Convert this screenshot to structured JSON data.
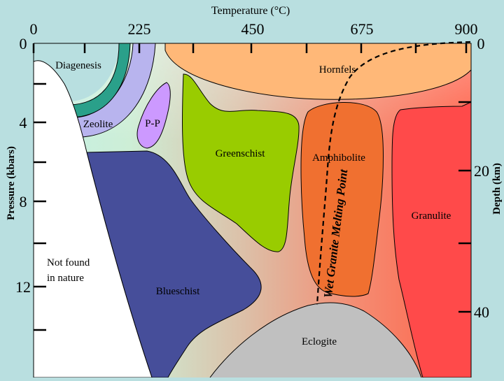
{
  "axes": {
    "top_title": "Temperature (°C)",
    "top_ticks": [
      "0",
      "225",
      "450",
      "675",
      "900"
    ],
    "left_title": "Pressure (kbars)",
    "left_ticks": [
      "0",
      "4",
      "8",
      "12"
    ],
    "right_title": "Depth (km)",
    "right_ticks": [
      "0",
      "20",
      "40"
    ]
  },
  "facies": {
    "diagenesis": "Diagenesis",
    "zeolite": "Zeolite",
    "pp": "P-P",
    "greenschist": "Greenschist",
    "hornfels": "Hornfels",
    "amphibolite": "Amphibolite",
    "granulite": "Granulite",
    "blueschist": "Blueschist",
    "eclogite": "Eclogite",
    "not_found_line1": "Not found",
    "not_found_line2": "in nature"
  },
  "melting_curve_label": "Wet Granite Melting Point",
  "colors": {
    "background": "#b9dfe0",
    "diagenesis": "#b8dfe0",
    "zeolite_band": "#2aa08a",
    "pp_band": "#b8b4ee",
    "pp": "#cc99ff",
    "greenschist": "#99cc00",
    "hornfels": "#ffb878",
    "amphibolite": "#f07030",
    "granulite": "#ff4a4a",
    "blueschist": "#464e9a",
    "eclogite": "#c0c0c0",
    "not_found": "#ffffff"
  }
}
